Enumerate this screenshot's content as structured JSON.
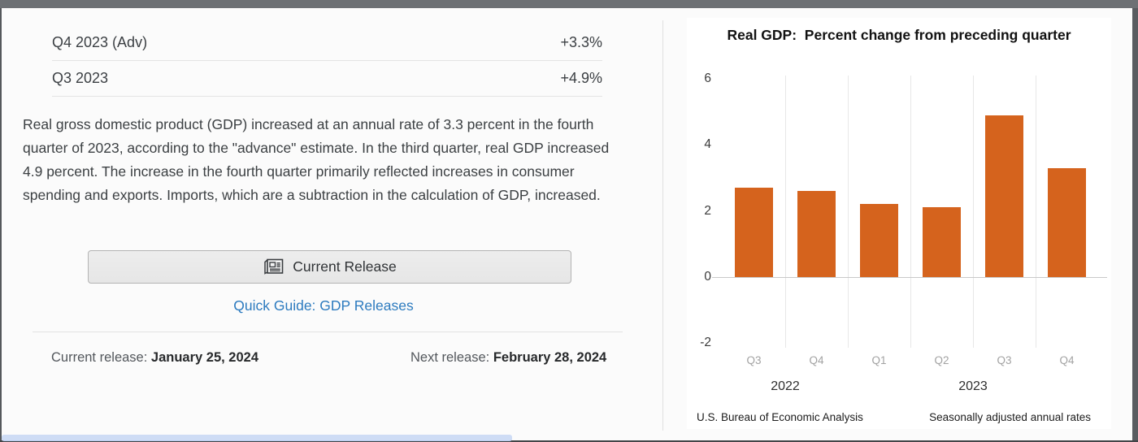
{
  "releases_table": {
    "rows": [
      {
        "label": "Q4 2023 (Adv)",
        "value": "+3.3%"
      },
      {
        "label": "Q3 2023",
        "value": "+4.9%"
      }
    ]
  },
  "summary_paragraph": "Real gross domestic product (GDP) increased at an annual rate of 3.3 percent in the fourth quarter of 2023, according to the \"advance\" estimate. In the third quarter, real GDP increased 4.9 percent. The increase in the fourth quarter primarily reflected increases in consumer spending and exports. Imports, which are a subtraction in the calculation of GDP, increased.",
  "actions": {
    "current_release_label": "Current Release",
    "quick_guide_label": "Quick Guide: GDP Releases"
  },
  "release_info": {
    "current_label": "Current release:",
    "current_date": "January 25, 2024",
    "next_label": "Next release:",
    "next_date": "February 28, 2024"
  },
  "chart_data": {
    "type": "bar",
    "title": "Real GDP:  Percent change from preceding quarter",
    "categories": [
      "Q3",
      "Q4",
      "Q1",
      "Q2",
      "Q3",
      "Q4"
    ],
    "values": [
      2.7,
      2.6,
      2.2,
      2.1,
      4.9,
      3.3
    ],
    "year_groups": [
      {
        "label": "2022",
        "from": 0,
        "to": 1
      },
      {
        "label": "2023",
        "from": 2,
        "to": 5
      }
    ],
    "ylim": [
      -2,
      6
    ],
    "yticks": [
      6,
      4,
      2,
      0,
      -2
    ],
    "grid": "vertical separators between bars, baseline at 0",
    "legend": "none",
    "bar_color": "#d5631d",
    "xlabel": "",
    "ylabel": "",
    "source": "U.S. Bureau of Economic Analysis",
    "note": "Seasonally adjusted annual rates"
  },
  "colors": {
    "bar_orange": "#d5631d",
    "link_blue": "#2d7bbf",
    "scrollbar_thumb": "#cedcf5",
    "frame_gray": "#6d7074"
  }
}
